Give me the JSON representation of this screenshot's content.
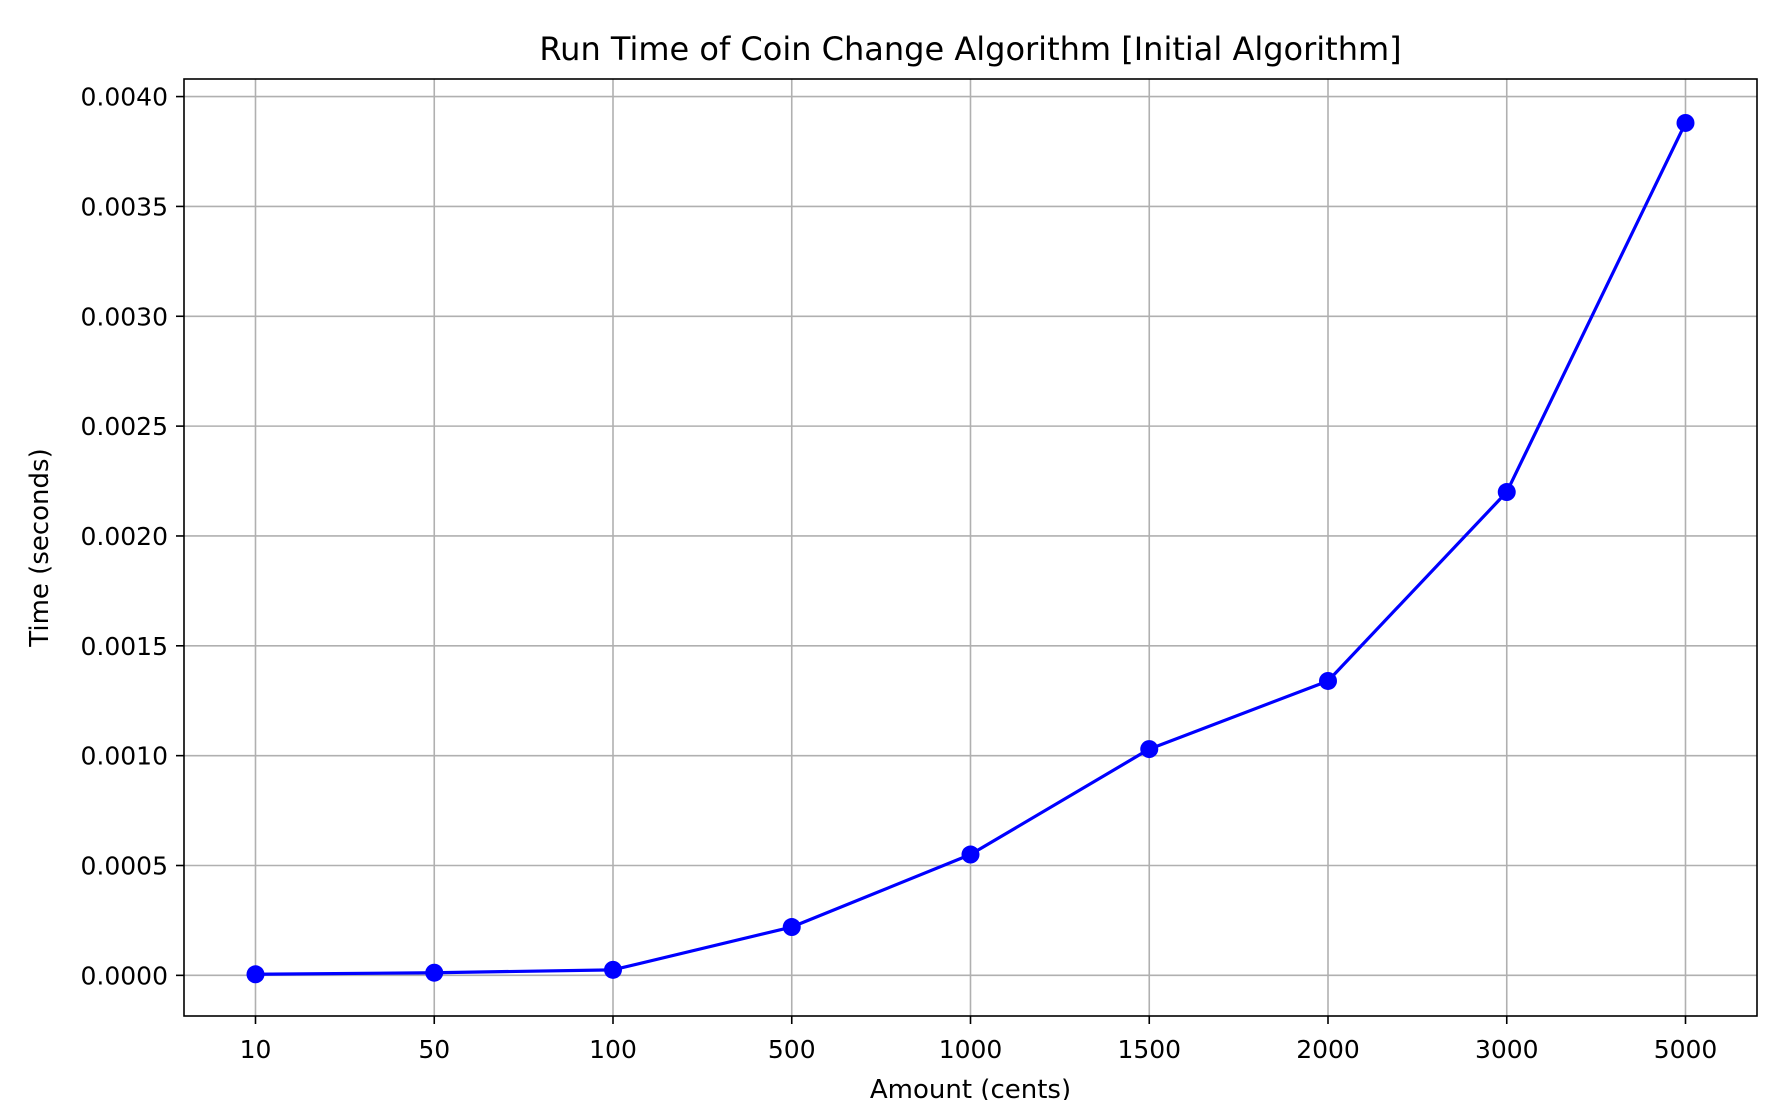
{
  "chart_data": {
    "type": "line",
    "title": "Run Time of Coin Change Algorithm [Initial Algorithm]",
    "xlabel": "Amount (cents)",
    "ylabel": "Time (seconds)",
    "x_axis_scale": "categorical",
    "categories": [
      "10",
      "50",
      "100",
      "500",
      "1000",
      "1500",
      "2000",
      "3000",
      "5000"
    ],
    "series": [
      {
        "values": [
          5e-06,
          1.2e-05,
          2.5e-05,
          0.00022,
          0.00055,
          0.00103,
          0.00134,
          0.0022,
          0.00388
        ],
        "color": "#0000ff",
        "marker": "circle"
      }
    ],
    "yticks": [
      0.0,
      0.0005,
      0.001,
      0.0015,
      0.002,
      0.0025,
      0.003,
      0.0035,
      0.004
    ],
    "ytick_labels": [
      "0.0000",
      "0.0005",
      "0.0010",
      "0.0015",
      "0.0020",
      "0.0025",
      "0.0030",
      "0.0035",
      "0.0040"
    ],
    "ylim": [
      -0.000185,
      0.00408
    ],
    "grid": true,
    "grid_color": "#b0b0b0",
    "legend": false
  }
}
